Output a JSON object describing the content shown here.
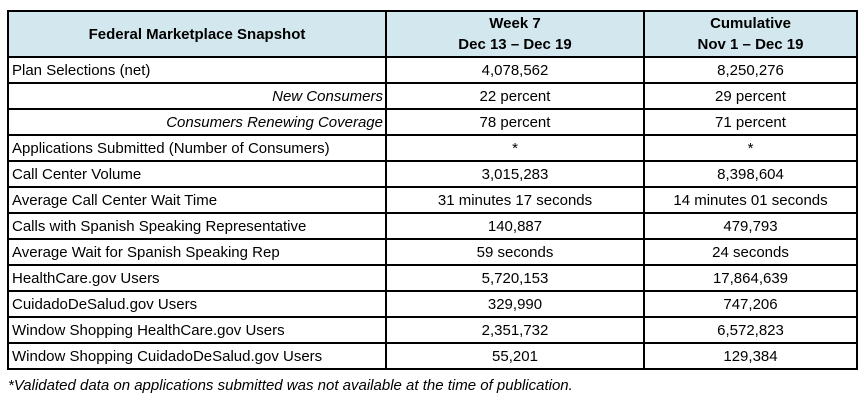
{
  "colors": {
    "header_bg": "#d3e7ee",
    "border": "#000000",
    "text": "#000000"
  },
  "table": {
    "header": {
      "col1": "Federal Marketplace Snapshot",
      "col2_line1": "Week 7",
      "col2_line2": "Dec 13  – Dec 19",
      "col3_line1": "Cumulative",
      "col3_line2": "Nov 1 – Dec 19"
    },
    "rows": [
      {
        "label": "Plan Selections (net)",
        "sub": false,
        "week": "4,078,562",
        "cumulative": "8,250,276"
      },
      {
        "label": "New Consumers",
        "sub": true,
        "week": "22 percent",
        "cumulative": "29 percent"
      },
      {
        "label": "Consumers Renewing Coverage",
        "sub": true,
        "week": "78 percent",
        "cumulative": "71 percent"
      },
      {
        "label": "Applications Submitted (Number of Consumers)",
        "sub": false,
        "week": "*",
        "cumulative": "*"
      },
      {
        "label": "Call Center Volume",
        "sub": false,
        "week": "3,015,283",
        "cumulative": "8,398,604"
      },
      {
        "label": "Average Call Center Wait Time",
        "sub": false,
        "week": "31 minutes 17 seconds",
        "cumulative": "14 minutes 01 seconds"
      },
      {
        "label": "Calls with Spanish Speaking Representative",
        "sub": false,
        "week": "140,887",
        "cumulative": "479,793"
      },
      {
        "label": "Average Wait for Spanish Speaking Rep",
        "sub": false,
        "week": "59 seconds",
        "cumulative": "24 seconds"
      },
      {
        "label": "HealthCare.gov Users",
        "sub": false,
        "week": "5,720,153",
        "cumulative": "17,864,639"
      },
      {
        "label": "CuidadoDeSalud.gov Users",
        "sub": false,
        "week": "329,990",
        "cumulative": "747,206"
      },
      {
        "label": "Window Shopping HealthCare.gov Users",
        "sub": false,
        "week": "2,351,732",
        "cumulative": "6,572,823"
      },
      {
        "label": "Window Shopping CuidadoDeSalud.gov Users",
        "sub": false,
        "week": "55,201",
        "cumulative": "129,384"
      }
    ]
  },
  "footnote": "*Validated data on applications submitted was not available at the time of publication."
}
